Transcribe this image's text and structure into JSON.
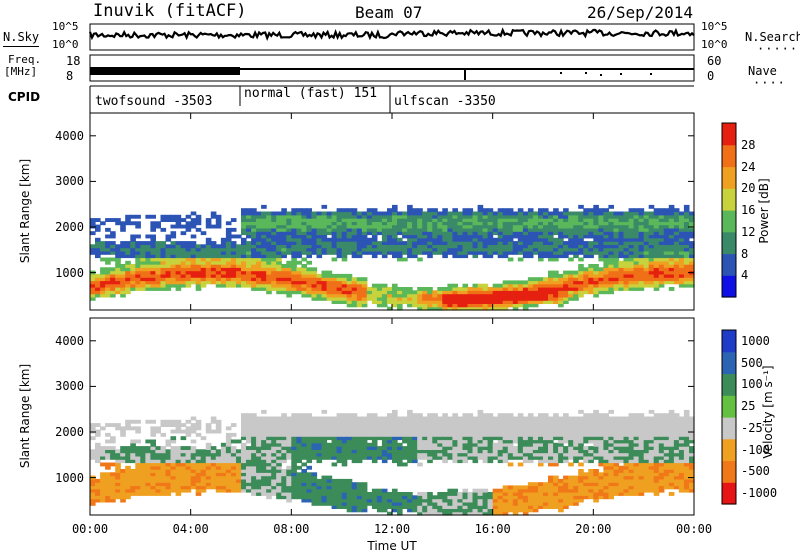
{
  "header": {
    "station": "Inuvik (fitACF)",
    "beam": "Beam 07",
    "date": "26/Sep/2014"
  },
  "top_panel": {
    "nsky_label": "N.Sky",
    "nsky_ticks": [
      "10^5",
      "10^0"
    ],
    "nsearch_label": "N.Search",
    "nsearch_ticks": [
      "10^5",
      "10^0"
    ],
    "freq_label": "Freq.",
    "freq_unit": "[MHz]",
    "freq_ticks": [
      "18",
      "8"
    ],
    "nave_label": "Nave",
    "nave_ticks": [
      "60",
      "0"
    ],
    "cpid_label": "CPID",
    "cpid_segments": [
      {
        "name": "twofsound -3503",
        "start_hour": 0,
        "end_hour": 6
      },
      {
        "name": "normal (fast) 151",
        "start_hour": 6,
        "end_hour": 12
      },
      {
        "name": "ulfscan -3350",
        "start_hour": 12,
        "end_hour": 24
      }
    ]
  },
  "chart_data": [
    {
      "type": "heatmap",
      "panel": "power",
      "ylabel": "Slant Range [km]",
      "xlabel": "",
      "x_ticks": [
        "00:00",
        "04:00",
        "08:00",
        "12:00",
        "16:00",
        "20:00",
        "00:00"
      ],
      "xlim_hours": [
        0,
        24
      ],
      "y_ticks": [
        1000,
        2000,
        3000,
        4000
      ],
      "ylim_km": [
        180,
        4500
      ],
      "colorbar": {
        "label": "Power [dB]",
        "ticks": [
          "4",
          "8",
          "12",
          "16",
          "20",
          "24",
          "28"
        ],
        "range": [
          0,
          30
        ],
        "colors": [
          "#1010e6",
          "#2c54b4",
          "#3a8a6a",
          "#5ab85a",
          "#c8d23c",
          "#f0a020",
          "#f07018",
          "#e62010"
        ]
      }
    },
    {
      "type": "heatmap",
      "panel": "velocity",
      "ylabel": "Slant Range [km]",
      "xlabel": "Time UT",
      "x_ticks": [
        "00:00",
        "04:00",
        "08:00",
        "12:00",
        "16:00",
        "20:00",
        "00:00"
      ],
      "xlim_hours": [
        0,
        24
      ],
      "y_ticks": [
        1000,
        2000,
        3000,
        4000
      ],
      "ylim_km": [
        180,
        4500
      ],
      "colorbar": {
        "label": "Velocity [m s⁻¹]",
        "ticks": [
          "1000",
          "500",
          "100",
          "25",
          "-25",
          "-100",
          "-500",
          "-1000"
        ],
        "colors": [
          "#1e3cc8",
          "#2c64b4",
          "#3c8c5a",
          "#64c040",
          "#c8c8c8",
          "#f0a020",
          "#f07818",
          "#e61414"
        ]
      }
    }
  ]
}
